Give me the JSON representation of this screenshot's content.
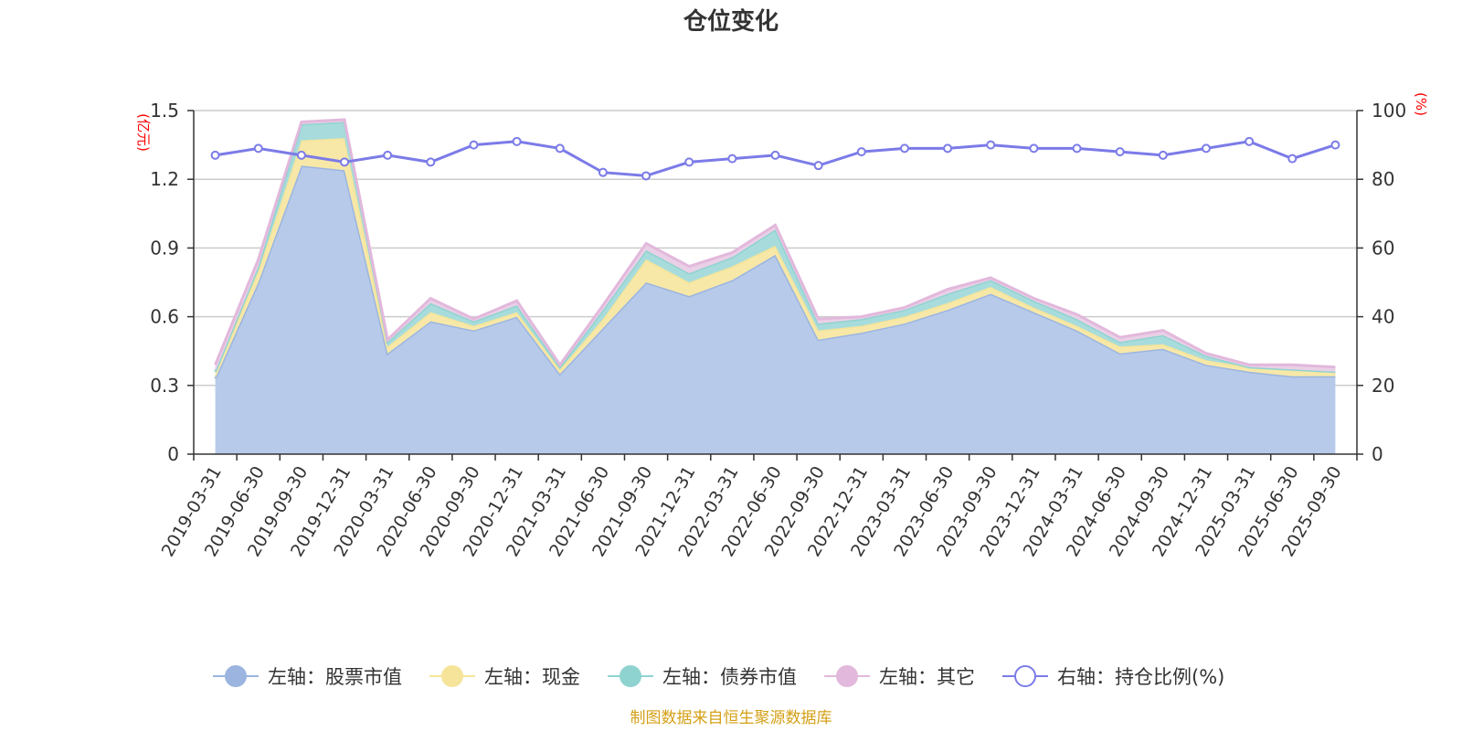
{
  "chart_data": {
    "type": "area",
    "title": "仓位变化",
    "left_axis_unit": "(亿元)",
    "right_axis_unit": "(%)",
    "left_ylim": [
      0,
      1.5
    ],
    "left_yticks": [
      "0",
      "0.3",
      "0.6",
      "0.9",
      "1.2",
      "1.5"
    ],
    "right_ylim": [
      0,
      100
    ],
    "right_yticks": [
      "0",
      "20",
      "40",
      "60",
      "80",
      "100"
    ],
    "grid": true,
    "legend_position": "bottom",
    "categories": [
      "2019-03-31",
      "2019-06-30",
      "2019-09-30",
      "2019-12-31",
      "2020-03-31",
      "2020-06-30",
      "2020-09-30",
      "2020-12-31",
      "2021-03-31",
      "2021-06-30",
      "2021-09-30",
      "2021-12-31",
      "2022-03-31",
      "2022-06-30",
      "2022-09-30",
      "2022-12-31",
      "2023-03-31",
      "2023-06-30",
      "2023-09-30",
      "2023-12-31",
      "2024-03-31",
      "2024-06-30",
      "2024-09-30",
      "2024-12-31",
      "2025-03-31",
      "2025-06-30",
      "2025-09-30"
    ],
    "stacked_series": [
      {
        "name": "左轴：股票市值",
        "axis": "left",
        "color": "#9bb5e0",
        "fill": "#b7caea",
        "values": [
          0.33,
          0.75,
          1.26,
          1.24,
          0.44,
          0.58,
          0.54,
          0.6,
          0.35,
          0.55,
          0.75,
          0.69,
          0.76,
          0.87,
          0.5,
          0.53,
          0.57,
          0.63,
          0.7,
          0.62,
          0.54,
          0.44,
          0.46,
          0.39,
          0.36,
          0.34,
          0.34
        ]
      },
      {
        "name": "左轴：现金",
        "axis": "left",
        "color": "#f5e49a",
        "fill": "#f7e8a8",
        "values": [
          0.03,
          0.05,
          0.11,
          0.14,
          0.03,
          0.04,
          0.02,
          0.02,
          0.02,
          0.04,
          0.1,
          0.06,
          0.06,
          0.04,
          0.04,
          0.03,
          0.03,
          0.03,
          0.03,
          0.02,
          0.02,
          0.03,
          0.02,
          0.02,
          0.02,
          0.03,
          0.02
        ]
      },
      {
        "name": "左轴：债券市值",
        "axis": "left",
        "color": "#8fd3d0",
        "fill": "#a8dcdc",
        "values": [
          0.0,
          0.02,
          0.07,
          0.07,
          0.02,
          0.04,
          0.02,
          0.03,
          0.01,
          0.04,
          0.04,
          0.04,
          0.04,
          0.07,
          0.03,
          0.03,
          0.03,
          0.04,
          0.03,
          0.03,
          0.03,
          0.02,
          0.04,
          0.02,
          0.0,
          0.0,
          0.0
        ]
      },
      {
        "name": "左轴：其它",
        "axis": "left",
        "color": "#e2b8dc",
        "fill": "#ead0e6",
        "values": [
          0.03,
          0.03,
          0.01,
          0.01,
          0.01,
          0.02,
          0.01,
          0.02,
          0.01,
          0.02,
          0.03,
          0.03,
          0.02,
          0.02,
          0.02,
          0.01,
          0.01,
          0.02,
          0.01,
          0.01,
          0.02,
          0.02,
          0.02,
          0.01,
          0.01,
          0.02,
          0.02
        ]
      }
    ],
    "line_series": {
      "name": "右轴：持仓比例(%)",
      "axis": "right",
      "color": "#7b7be8",
      "values": [
        87,
        89,
        87,
        85,
        87,
        85,
        90,
        91,
        89,
        82,
        81,
        85,
        86,
        87,
        84,
        88,
        89,
        89,
        90,
        89,
        89,
        88,
        87,
        89,
        91,
        86,
        90
      ]
    },
    "source": "制图数据来自恒生聚源数据库"
  }
}
